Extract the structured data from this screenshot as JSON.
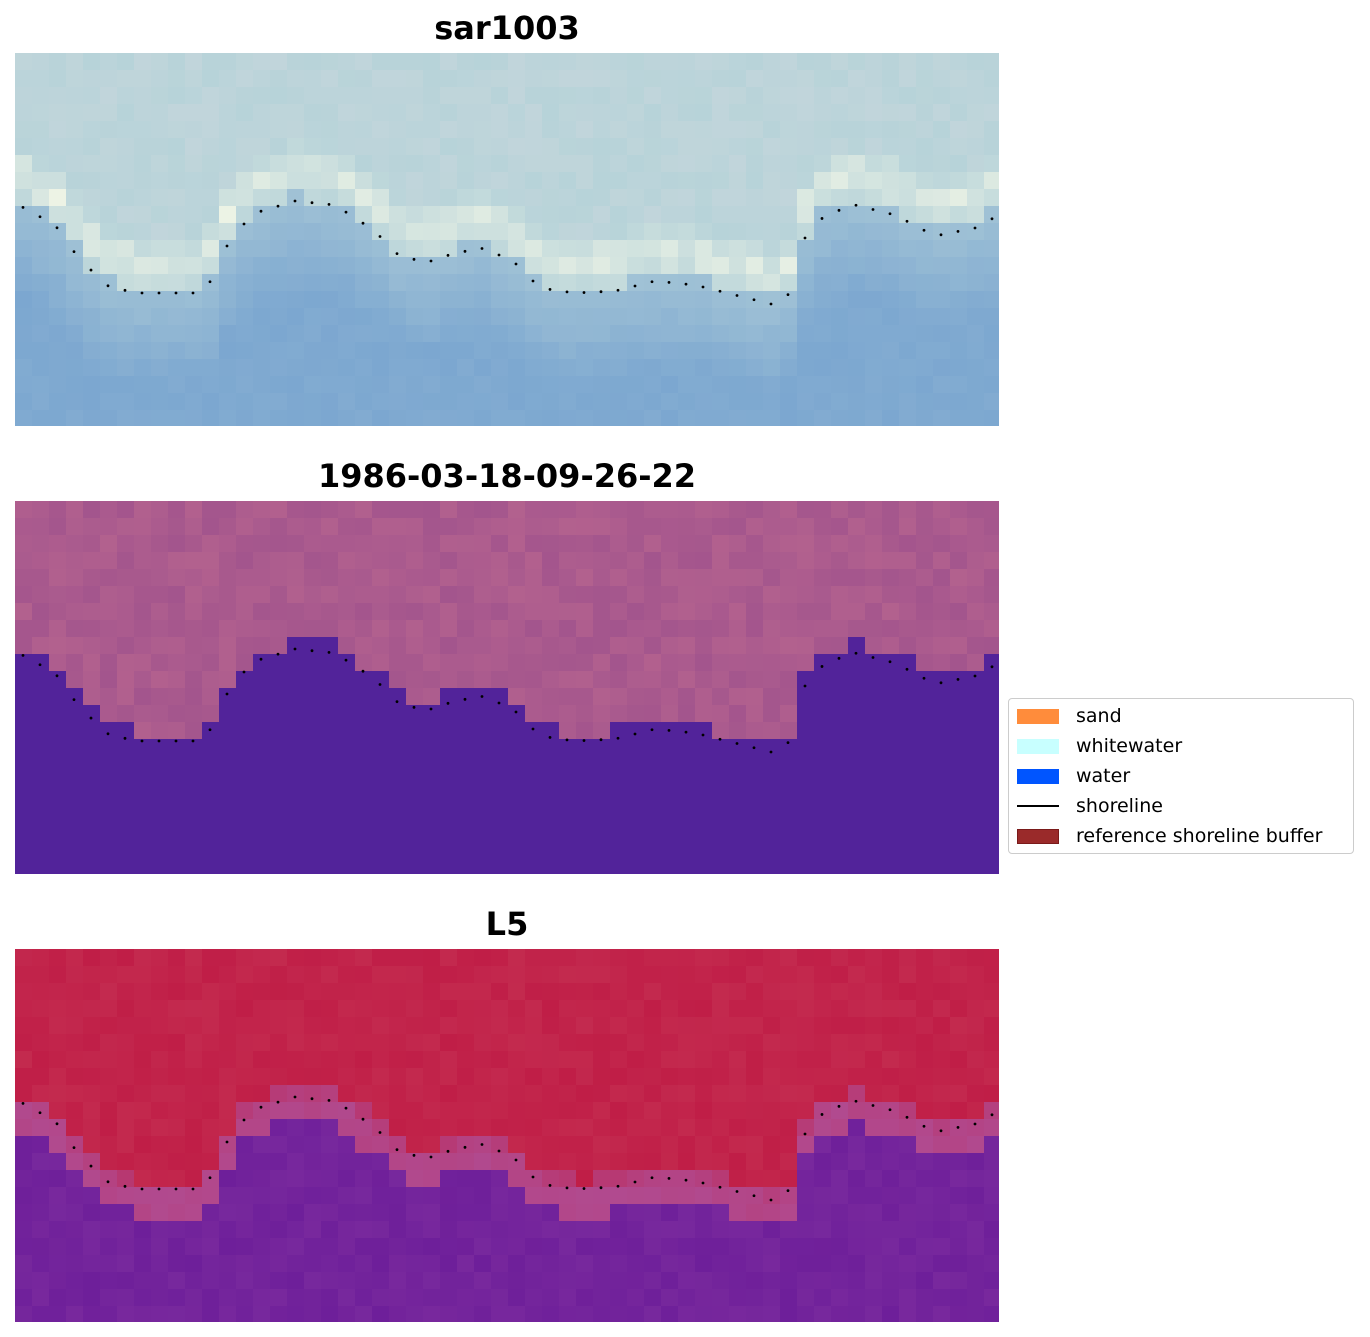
{
  "panels": [
    {
      "title": "sar1003",
      "theme": "rgb"
    },
    {
      "title": "1986-03-18-09-26-22",
      "theme": "class"
    },
    {
      "title": "L5",
      "theme": "index"
    }
  ],
  "legend": {
    "items": [
      {
        "label": "sand",
        "color": "#ff8c3b",
        "kind": "patch"
      },
      {
        "label": "whitewater",
        "color": "#c8ffff",
        "kind": "patch"
      },
      {
        "label": "water",
        "color": "#0055ff",
        "kind": "patch"
      },
      {
        "label": "shoreline",
        "color": "#000000",
        "kind": "line"
      },
      {
        "label": "reference shoreline buffer",
        "color": "#9a2a2a",
        "kind": "patch"
      }
    ]
  },
  "colors": {
    "rgb_land": "#b7d3d9",
    "rgb_water": "#7ca7d0",
    "rgb_foam": "#f0f5e6",
    "class_land": "#a3558d",
    "class_land_light": "#b9668f",
    "class_water": "#52239a",
    "index_land": "#c01e47",
    "index_edge": "#b14a8f",
    "index_water": "#6e1f9a"
  }
}
